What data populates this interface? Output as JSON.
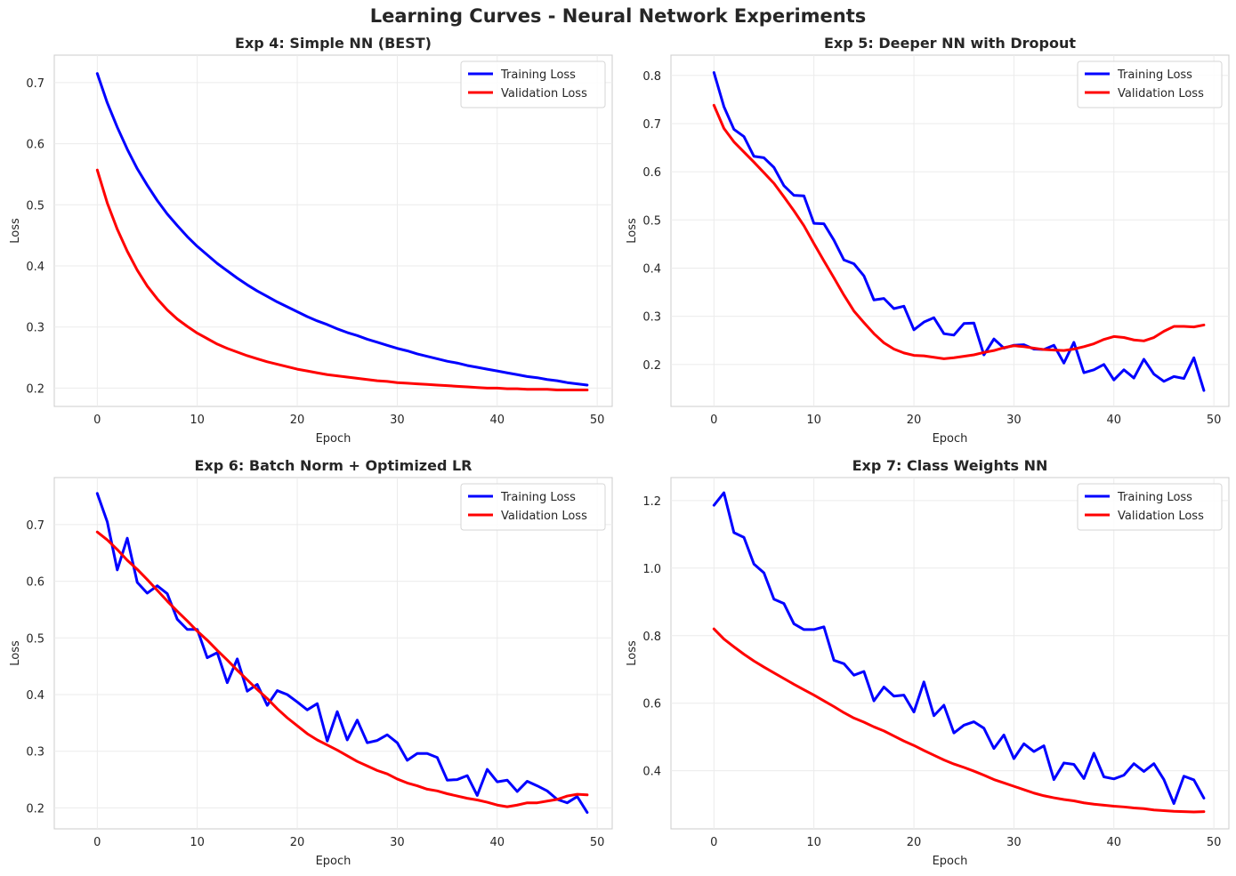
{
  "figure_title": "Learning Curves - Neural Network Experiments",
  "colors": {
    "training": "#0000ff",
    "validation": "#ff0000"
  },
  "chart_data": [
    {
      "type": "line",
      "title": "Exp 4: Simple NN (BEST)",
      "xlabel": "Epoch",
      "ylabel": "Loss",
      "xlim": [
        -4.3,
        51.5
      ],
      "ylim": [
        0.17,
        0.745
      ],
      "xticks": [
        0,
        10,
        20,
        30,
        40,
        50
      ],
      "yticks": [
        0.2,
        0.3,
        0.4,
        0.5,
        0.6,
        0.7
      ],
      "yticklabels": [
        "0.2",
        "0.3",
        "0.4",
        "0.5",
        "0.6",
        "0.7"
      ],
      "grid": true,
      "legend": "upper right",
      "x": [
        0,
        1,
        2,
        3,
        4,
        5,
        6,
        7,
        8,
        9,
        10,
        11,
        12,
        13,
        14,
        15,
        16,
        17,
        18,
        19,
        20,
        21,
        22,
        23,
        24,
        25,
        26,
        27,
        28,
        29,
        30,
        31,
        32,
        33,
        34,
        35,
        36,
        37,
        38,
        39,
        40,
        41,
        42,
        43,
        44,
        45,
        46,
        47,
        48,
        49
      ],
      "series": [
        {
          "name": "Training Loss",
          "values": [
            0.715,
            0.667,
            0.627,
            0.591,
            0.559,
            0.532,
            0.507,
            0.485,
            0.466,
            0.448,
            0.432,
            0.418,
            0.404,
            0.392,
            0.38,
            0.369,
            0.359,
            0.35,
            0.341,
            0.333,
            0.325,
            0.317,
            0.31,
            0.304,
            0.297,
            0.291,
            0.286,
            0.28,
            0.275,
            0.27,
            0.265,
            0.261,
            0.256,
            0.252,
            0.248,
            0.244,
            0.241,
            0.237,
            0.234,
            0.231,
            0.228,
            0.225,
            0.222,
            0.219,
            0.217,
            0.214,
            0.212,
            0.209,
            0.207,
            0.205
          ]
        },
        {
          "name": "Validation Loss",
          "values": [
            0.557,
            0.503,
            0.46,
            0.424,
            0.393,
            0.367,
            0.346,
            0.328,
            0.313,
            0.301,
            0.29,
            0.281,
            0.272,
            0.265,
            0.259,
            0.253,
            0.248,
            0.243,
            0.239,
            0.235,
            0.231,
            0.228,
            0.225,
            0.222,
            0.22,
            0.218,
            0.216,
            0.214,
            0.212,
            0.211,
            0.209,
            0.208,
            0.207,
            0.206,
            0.205,
            0.204,
            0.203,
            0.202,
            0.201,
            0.2,
            0.2,
            0.199,
            0.199,
            0.198,
            0.198,
            0.198,
            0.197,
            0.197,
            0.197,
            0.197
          ]
        }
      ]
    },
    {
      "type": "line",
      "title": "Exp 5: Deeper NN with Dropout",
      "xlabel": "Epoch",
      "ylabel": "Loss",
      "xlim": [
        -4.3,
        51.5
      ],
      "ylim": [
        0.113,
        0.842
      ],
      "xticks": [
        0,
        10,
        20,
        30,
        40,
        50
      ],
      "yticks": [
        0.2,
        0.3,
        0.4,
        0.5,
        0.6,
        0.7,
        0.8
      ],
      "yticklabels": [
        "0.2",
        "0.3",
        "0.4",
        "0.5",
        "0.6",
        "0.7",
        "0.8"
      ],
      "grid": true,
      "legend": "upper right",
      "x": [
        0,
        1,
        2,
        3,
        4,
        5,
        6,
        7,
        8,
        9,
        10,
        11,
        12,
        13,
        14,
        15,
        16,
        17,
        18,
        19,
        20,
        21,
        22,
        23,
        24,
        25,
        26,
        27,
        28,
        29,
        30,
        31,
        32,
        33,
        34,
        35,
        36,
        37,
        38,
        39,
        40,
        41,
        42,
        43,
        44,
        45,
        46,
        47,
        48,
        49
      ],
      "series": [
        {
          "name": "Training Loss",
          "values": [
            0.806,
            0.735,
            0.688,
            0.673,
            0.632,
            0.629,
            0.609,
            0.571,
            0.551,
            0.55,
            0.493,
            0.492,
            0.458,
            0.417,
            0.409,
            0.384,
            0.334,
            0.337,
            0.316,
            0.321,
            0.272,
            0.288,
            0.297,
            0.264,
            0.261,
            0.285,
            0.286,
            0.22,
            0.253,
            0.234,
            0.24,
            0.241,
            0.232,
            0.231,
            0.24,
            0.203,
            0.246,
            0.183,
            0.189,
            0.2,
            0.168,
            0.189,
            0.172,
            0.211,
            0.18,
            0.165,
            0.175,
            0.171,
            0.214,
            0.146
          ]
        },
        {
          "name": "Validation Loss",
          "values": [
            0.738,
            0.69,
            0.662,
            0.641,
            0.62,
            0.598,
            0.576,
            0.548,
            0.519,
            0.488,
            0.451,
            0.415,
            0.38,
            0.344,
            0.311,
            0.287,
            0.264,
            0.245,
            0.232,
            0.224,
            0.219,
            0.218,
            0.215,
            0.212,
            0.214,
            0.217,
            0.22,
            0.225,
            0.229,
            0.235,
            0.239,
            0.237,
            0.234,
            0.231,
            0.23,
            0.229,
            0.232,
            0.237,
            0.243,
            0.252,
            0.258,
            0.256,
            0.251,
            0.249,
            0.256,
            0.269,
            0.279,
            0.279,
            0.278,
            0.282
          ]
        }
      ]
    },
    {
      "type": "line",
      "title": "Exp 6: Batch Norm + Optimized LR",
      "xlabel": "Epoch",
      "ylabel": "Loss",
      "xlim": [
        -4.3,
        51.5
      ],
      "ylim": [
        0.163,
        0.783
      ],
      "xticks": [
        0,
        10,
        20,
        30,
        40,
        50
      ],
      "yticks": [
        0.2,
        0.3,
        0.4,
        0.5,
        0.6,
        0.7
      ],
      "yticklabels": [
        "0.2",
        "0.3",
        "0.4",
        "0.5",
        "0.6",
        "0.7"
      ],
      "grid": true,
      "legend": "upper right",
      "x": [
        0,
        1,
        2,
        3,
        4,
        5,
        6,
        7,
        8,
        9,
        10,
        11,
        12,
        13,
        14,
        15,
        16,
        17,
        18,
        19,
        20,
        21,
        22,
        23,
        24,
        25,
        26,
        27,
        28,
        29,
        30,
        31,
        32,
        33,
        34,
        35,
        36,
        37,
        38,
        39,
        40,
        41,
        42,
        43,
        44,
        45,
        46,
        47,
        48,
        49
      ],
      "series": [
        {
          "name": "Training Loss",
          "values": [
            0.755,
            0.705,
            0.62,
            0.676,
            0.598,
            0.579,
            0.592,
            0.578,
            0.533,
            0.515,
            0.515,
            0.465,
            0.474,
            0.421,
            0.463,
            0.406,
            0.418,
            0.381,
            0.407,
            0.4,
            0.387,
            0.373,
            0.384,
            0.318,
            0.37,
            0.32,
            0.355,
            0.315,
            0.319,
            0.329,
            0.315,
            0.284,
            0.296,
            0.296,
            0.289,
            0.249,
            0.25,
            0.257,
            0.222,
            0.268,
            0.246,
            0.249,
            0.229,
            0.247,
            0.239,
            0.23,
            0.215,
            0.209,
            0.22,
            0.192
          ]
        },
        {
          "name": "Validation Loss",
          "values": [
            0.687,
            0.673,
            0.656,
            0.637,
            0.621,
            0.603,
            0.584,
            0.565,
            0.547,
            0.53,
            0.512,
            0.496,
            0.478,
            0.461,
            0.443,
            0.426,
            0.409,
            0.393,
            0.375,
            0.359,
            0.345,
            0.331,
            0.32,
            0.311,
            0.302,
            0.292,
            0.282,
            0.274,
            0.266,
            0.26,
            0.251,
            0.244,
            0.239,
            0.233,
            0.23,
            0.225,
            0.221,
            0.217,
            0.214,
            0.21,
            0.205,
            0.202,
            0.205,
            0.209,
            0.209,
            0.212,
            0.215,
            0.221,
            0.224,
            0.223
          ]
        }
      ]
    },
    {
      "type": "line",
      "title": "Exp 7: Class Weights NN",
      "xlabel": "Epoch",
      "ylabel": "Loss",
      "xlim": [
        -4.3,
        51.5
      ],
      "ylim": [
        0.228,
        1.268
      ],
      "xticks": [
        0,
        10,
        20,
        30,
        40,
        50
      ],
      "yticks": [
        0.4,
        0.6,
        0.8,
        1.0,
        1.2
      ],
      "yticklabels": [
        "0.4",
        "0.6",
        "0.8",
        "1.0",
        "1.2"
      ],
      "grid": true,
      "legend": "upper right",
      "x": [
        0,
        1,
        2,
        3,
        4,
        5,
        6,
        7,
        8,
        9,
        10,
        11,
        12,
        13,
        14,
        15,
        16,
        17,
        18,
        19,
        20,
        21,
        22,
        23,
        24,
        25,
        26,
        27,
        28,
        29,
        30,
        31,
        32,
        33,
        34,
        35,
        36,
        37,
        38,
        39,
        40,
        41,
        42,
        43,
        44,
        45,
        46,
        47,
        48,
        49
      ],
      "series": [
        {
          "name": "Training Loss",
          "values": [
            1.186,
            1.223,
            1.105,
            1.091,
            1.012,
            0.986,
            0.908,
            0.895,
            0.835,
            0.818,
            0.818,
            0.826,
            0.727,
            0.717,
            0.683,
            0.694,
            0.607,
            0.648,
            0.621,
            0.624,
            0.574,
            0.663,
            0.563,
            0.594,
            0.512,
            0.535,
            0.545,
            0.526,
            0.466,
            0.506,
            0.436,
            0.48,
            0.457,
            0.474,
            0.374,
            0.423,
            0.419,
            0.377,
            0.452,
            0.382,
            0.376,
            0.387,
            0.421,
            0.398,
            0.421,
            0.374,
            0.303,
            0.384,
            0.373,
            0.319
          ]
        },
        {
          "name": "Validation Loss",
          "values": [
            0.82,
            0.79,
            0.767,
            0.745,
            0.725,
            0.707,
            0.69,
            0.673,
            0.656,
            0.64,
            0.624,
            0.607,
            0.59,
            0.572,
            0.556,
            0.544,
            0.53,
            0.518,
            0.503,
            0.488,
            0.475,
            0.46,
            0.446,
            0.432,
            0.42,
            0.41,
            0.399,
            0.387,
            0.374,
            0.364,
            0.354,
            0.344,
            0.334,
            0.326,
            0.32,
            0.315,
            0.311,
            0.305,
            0.301,
            0.298,
            0.295,
            0.293,
            0.29,
            0.288,
            0.284,
            0.282,
            0.28,
            0.279,
            0.278,
            0.279
          ]
        }
      ]
    }
  ]
}
